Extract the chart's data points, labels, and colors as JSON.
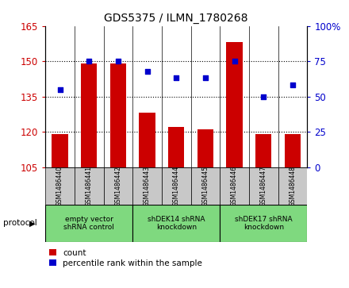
{
  "title": "GDS5375 / ILMN_1780268",
  "samples": [
    "GSM1486440",
    "GSM1486441",
    "GSM1486442",
    "GSM1486443",
    "GSM1486444",
    "GSM1486445",
    "GSM1486446",
    "GSM1486447",
    "GSM1486448"
  ],
  "counts": [
    119,
    149,
    149,
    128,
    122,
    121,
    158,
    119,
    119
  ],
  "percentiles": [
    55,
    75,
    75,
    68,
    63,
    63,
    75,
    50,
    58
  ],
  "ylim_left": [
    105,
    165
  ],
  "ylim_right": [
    0,
    100
  ],
  "yticks_left": [
    105,
    120,
    135,
    150,
    165
  ],
  "yticks_right": [
    0,
    25,
    50,
    75,
    100
  ],
  "bar_color": "#cc0000",
  "dot_color": "#0000cc",
  "groups": [
    {
      "label": "empty vector\nshRNA control",
      "start": 0,
      "end": 3,
      "color": "#7FD97F"
    },
    {
      "label": "shDEK14 shRNA\nknockdown",
      "start": 3,
      "end": 6,
      "color": "#7FD97F"
    },
    {
      "label": "shDEK17 shRNA\nknockdown",
      "start": 6,
      "end": 9,
      "color": "#7FD97F"
    }
  ],
  "protocol_label": "protocol",
  "legend_count_label": "count",
  "legend_percentile_label": "percentile rank within the sample",
  "tick_label_color_left": "#cc0000",
  "tick_label_color_right": "#0000cc",
  "sample_box_color": "#c8c8c8",
  "bar_width": 0.55
}
